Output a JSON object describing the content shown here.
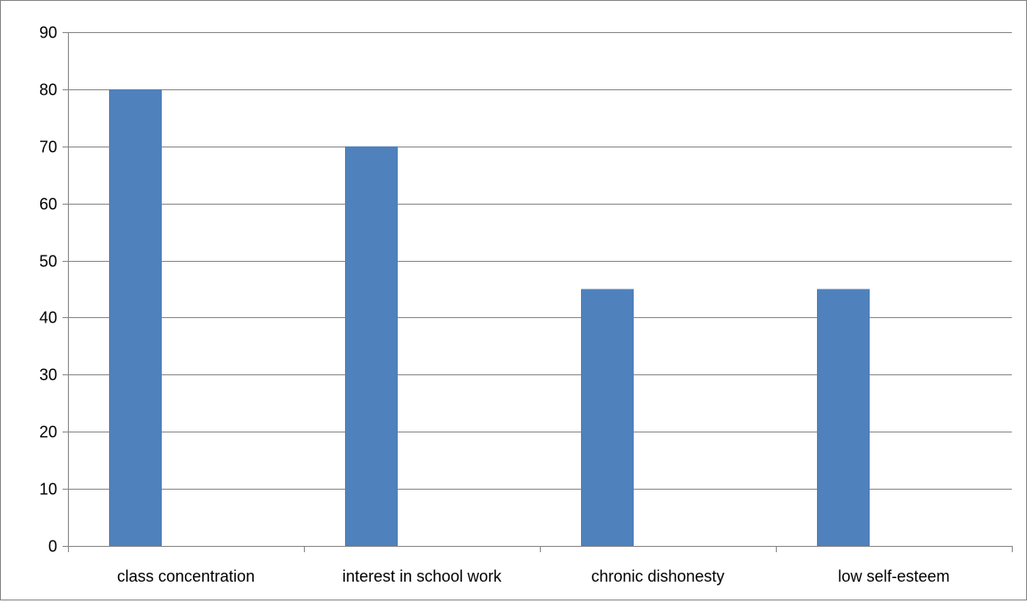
{
  "chart_data": {
    "type": "bar",
    "title": "",
    "xlabel": "",
    "ylabel": "",
    "categories": [
      "class concentration",
      "interest in school work",
      "chronic dishonesty",
      "low self-esteem"
    ],
    "series": [
      {
        "values": [
          80,
          70,
          45,
          45
        ]
      }
    ],
    "ylim": [
      0,
      90
    ],
    "yticks": [
      0,
      10,
      20,
      30,
      40,
      50,
      60,
      70,
      80,
      90
    ],
    "grid": true,
    "legend": "none",
    "bar_color": "#4F81BD",
    "grid_color": "#868686"
  }
}
